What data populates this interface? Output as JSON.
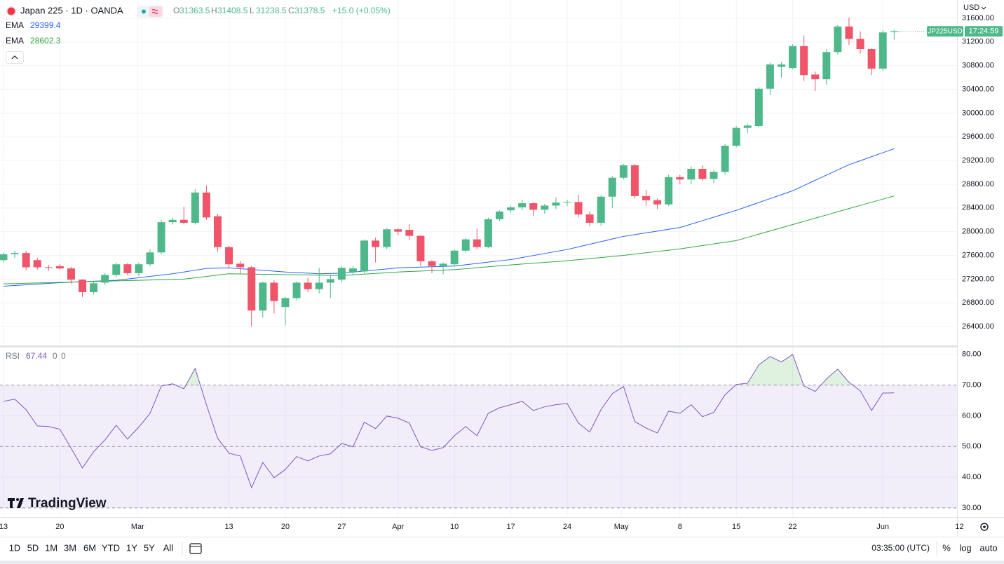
{
  "header": {
    "symbol": "Japan 225 · 1D · OANDA",
    "ohlc_letters": [
      "O",
      "H",
      "L",
      "C"
    ],
    "change": "+15.0 (+0.05%)"
  },
  "branding": "TradingView",
  "toolbar": {
    "ranges": [
      "1D",
      "5D",
      "1M",
      "3M",
      "6M",
      "YTD",
      "1Y",
      "5Y",
      "All"
    ],
    "clock": "03:35:00 (UTC)",
    "scale_options": [
      "%",
      "log",
      "auto"
    ]
  },
  "chart_data": [
    {
      "type": "candlestick",
      "currency": "USD",
      "up_color": "#4fb88a",
      "down_color": "#ef5469",
      "price_tag": {
        "symbol": "JP225USD",
        "countdown": "17:24:59"
      },
      "open": [
        27520,
        27620,
        27640,
        27520,
        27400,
        27420,
        27380,
        27190,
        26980,
        27140,
        27270,
        27450,
        27300,
        27450,
        27650,
        28160,
        28200,
        28150,
        28660,
        28260,
        27740,
        27460,
        27400,
        26670,
        27140,
        26730,
        26880,
        27140,
        27030,
        27140,
        27190,
        27320,
        27330,
        27850,
        27740,
        28040,
        28030,
        27930,
        27500,
        27420,
        27450,
        27680,
        27870,
        27740,
        28210,
        28360,
        28410,
        28480,
        28370,
        28440,
        28490,
        28500,
        28290,
        28150,
        28590,
        28910,
        29120,
        28600,
        28530,
        28460,
        28920,
        28880,
        29060,
        28890,
        29010,
        29450,
        29750,
        29780,
        30410,
        30780,
        30760,
        31130,
        30650,
        30570,
        31030,
        31460,
        31250,
        31080,
        30750,
        31363.5
      ],
      "high": [
        27650,
        27680,
        27680,
        27560,
        27440,
        27450,
        27410,
        27200,
        27160,
        27300,
        27480,
        27470,
        27480,
        27700,
        28200,
        28240,
        28420,
        28720,
        28780,
        28300,
        27760,
        27500,
        27420,
        27160,
        27180,
        26900,
        27160,
        27220,
        27390,
        27260,
        27420,
        27420,
        27870,
        27900,
        28060,
        28060,
        28130,
        27940,
        27520,
        27480,
        27700,
        27900,
        28050,
        28240,
        28360,
        28440,
        28540,
        28500,
        28470,
        28580,
        28540,
        28620,
        28340,
        28620,
        28940,
        29140,
        29140,
        28700,
        28560,
        28960,
        28960,
        29100,
        29120,
        29040,
        29480,
        29780,
        29820,
        30440,
        30850,
        30860,
        31160,
        31310,
        30700,
        31080,
        31480,
        31610,
        31380,
        31090,
        31400,
        31408.5
      ],
      "low": [
        27480,
        27560,
        27350,
        27360,
        27340,
        27360,
        27120,
        26900,
        26940,
        27100,
        27230,
        27260,
        27250,
        27420,
        27620,
        28120,
        28120,
        28120,
        28200,
        27660,
        27380,
        27280,
        26400,
        26550,
        26620,
        26420,
        26840,
        26980,
        26960,
        26880,
        27150,
        27260,
        27300,
        27480,
        27700,
        27940,
        27860,
        27420,
        27300,
        27280,
        27420,
        27640,
        27700,
        27720,
        28180,
        28320,
        28360,
        28260,
        28300,
        28380,
        28430,
        28240,
        28090,
        28100,
        28400,
        28880,
        28560,
        28440,
        28380,
        28430,
        28800,
        28800,
        28860,
        28820,
        28960,
        29420,
        29660,
        29760,
        30300,
        30600,
        30740,
        30540,
        30370,
        30480,
        30990,
        31150,
        31000,
        30640,
        30720,
        31238.5
      ],
      "close": [
        27620,
        27640,
        27400,
        27400,
        27390,
        27380,
        27190,
        26980,
        27130,
        27270,
        27450,
        27300,
        27450,
        27650,
        28160,
        28200,
        28150,
        28660,
        28240,
        27740,
        27450,
        27400,
        26670,
        27140,
        26830,
        26880,
        27140,
        27030,
        27140,
        27200,
        27390,
        27380,
        27850,
        27740,
        28040,
        28000,
        27930,
        27500,
        27420,
        27460,
        27680,
        27870,
        27740,
        28210,
        28340,
        28410,
        28480,
        28370,
        28440,
        28490,
        28500,
        28290,
        28150,
        28590,
        28910,
        29120,
        28600,
        28530,
        28460,
        28920,
        28880,
        29060,
        28890,
        29010,
        29450,
        29750,
        29790,
        30410,
        30820,
        30820,
        31130,
        30640,
        30570,
        31030,
        31460,
        31250,
        31080,
        30750,
        31360,
        31378.5
      ],
      "series": [
        {
          "name": "EMA",
          "color": "#2962ff",
          "values": [
            27080,
            27092,
            27104,
            27116,
            27128,
            27140,
            27148,
            27156,
            27164,
            27172,
            27180,
            27202,
            27224,
            27246,
            27268,
            27290,
            27320,
            27350,
            27380,
            27385,
            27390,
            27376,
            27362,
            27348,
            27334,
            27320,
            27310,
            27300,
            27290,
            27295,
            27300,
            27318,
            27336,
            27354,
            27372,
            27390,
            27396,
            27402,
            27408,
            27414,
            27420,
            27442,
            27464,
            27486,
            27508,
            27530,
            27564,
            27598,
            27632,
            27666,
            27700,
            27744,
            27788,
            27832,
            27876,
            27920,
            27950,
            27980,
            28010,
            28040,
            28070,
            28128,
            28186,
            28244,
            28302,
            28360,
            28426,
            28492,
            28558,
            28624,
            28690,
            28778,
            28866,
            28954,
            29042,
            29130,
            29197,
            29265,
            29332,
            29399.4
          ]
        },
        {
          "name": "EMA",
          "color": "#2fa83c",
          "values": [
            27120,
            27125,
            27130,
            27135,
            27140,
            27145,
            27150,
            27155,
            27160,
            27165,
            27170,
            27175,
            27180,
            27185,
            27190,
            27195,
            27200,
            27222,
            27245,
            27268,
            27290,
            27287,
            27284,
            27281,
            27278,
            27275,
            27272,
            27269,
            27266,
            27263,
            27260,
            27272,
            27284,
            27296,
            27308,
            27320,
            27328,
            27336,
            27344,
            27352,
            27360,
            27376,
            27392,
            27408,
            27424,
            27440,
            27454,
            27468,
            27482,
            27496,
            27510,
            27528,
            27546,
            27564,
            27582,
            27600,
            27622,
            27644,
            27666,
            27688,
            27710,
            27738,
            27766,
            27794,
            27822,
            27850,
            27904,
            27958,
            28012,
            28066,
            28120,
            28174,
            28228,
            28282,
            28336,
            28390,
            28443,
            28496,
            28549,
            28602.3
          ]
        }
      ],
      "ylim": [
        26082,
        31907
      ],
      "yticks": [
        {
          "value": 26400,
          "label": "26400.00"
        },
        {
          "value": 26800,
          "label": "26800.00"
        },
        {
          "value": 27200,
          "label": "27200.00"
        },
        {
          "value": 27600,
          "label": "27600.00"
        },
        {
          "value": 28000,
          "label": "28000.00"
        },
        {
          "value": 28400,
          "label": "28400.00"
        },
        {
          "value": 28800,
          "label": "28800.00"
        },
        {
          "value": 29200,
          "label": "29200.00"
        },
        {
          "value": 29600,
          "label": "29600.00"
        },
        {
          "value": 30000,
          "label": "30000.00"
        },
        {
          "value": 30400,
          "label": "30400.00"
        },
        {
          "value": 30800,
          "label": "30800.00"
        },
        {
          "value": 31200,
          "label": "31200.00"
        },
        {
          "value": 31600,
          "label": "31600.00"
        }
      ],
      "xlim": [
        -0.31,
        84.58
      ],
      "xticks": [
        {
          "value": 0,
          "label": "13"
        },
        {
          "value": 5,
          "label": "20"
        },
        {
          "value": 11.9,
          "label": "Mar"
        },
        {
          "value": 20,
          "label": "13"
        },
        {
          "value": 25,
          "label": "20"
        },
        {
          "value": 30,
          "label": "27"
        },
        {
          "value": 35,
          "label": "Apr"
        },
        {
          "value": 40,
          "label": "10"
        },
        {
          "value": 45,
          "label": "17"
        },
        {
          "value": 50,
          "label": "24"
        },
        {
          "value": 54.8,
          "label": "May"
        },
        {
          "value": 60,
          "label": "8"
        },
        {
          "value": 65,
          "label": "15"
        },
        {
          "value": 70,
          "label": "22"
        },
        {
          "value": 78,
          "label": "Jun"
        },
        {
          "value": 84.8,
          "label": "12"
        }
      ],
      "grid": true
    },
    {
      "type": "line",
      "name": "RSI",
      "color": "#7e57c2",
      "legend_values": [
        0,
        0
      ],
      "values": [
        64.7,
        65.4,
        62,
        56.7,
        56.5,
        55.6,
        49.4,
        43,
        48.3,
        52.1,
        56.9,
        52.4,
        56.3,
        60.8,
        69.7,
        70.4,
        68.8,
        75.4,
        63.6,
        52.6,
        47.8,
        46.9,
        36.6,
        44.8,
        39.8,
        42.5,
        46.7,
        45.3,
        46.9,
        47.6,
        51,
        49.9,
        57.9,
        55.8,
        59.9,
        59.2,
        57.6,
        49.9,
        48.7,
        49.6,
        53.5,
        56.5,
        53.5,
        60.8,
        62.6,
        63.6,
        64.7,
        61.7,
        62.9,
        63.6,
        64,
        57.6,
        54.7,
        62,
        67.2,
        69.5,
        58.1,
        56,
        54.4,
        61.5,
        60.8,
        63.6,
        59.7,
        61.1,
        66.8,
        70.2,
        70.6,
        76.6,
        79.3,
        77.5,
        80,
        69.7,
        67.9,
        72,
        75.2,
        70.9,
        68.1,
        61.7,
        67.4,
        67.44
      ],
      "levels": [
        70,
        50,
        30
      ],
      "ylim": [
        27,
        82
      ],
      "yticks": [
        {
          "value": 80,
          "label": "80.00"
        },
        {
          "value": 70,
          "label": "70.00"
        },
        {
          "value": 60,
          "label": "60.00"
        },
        {
          "value": 50,
          "label": "50.00"
        },
        {
          "value": 40,
          "label": "40.00"
        },
        {
          "value": 30,
          "label": "30.00"
        }
      ],
      "grid": true
    }
  ]
}
